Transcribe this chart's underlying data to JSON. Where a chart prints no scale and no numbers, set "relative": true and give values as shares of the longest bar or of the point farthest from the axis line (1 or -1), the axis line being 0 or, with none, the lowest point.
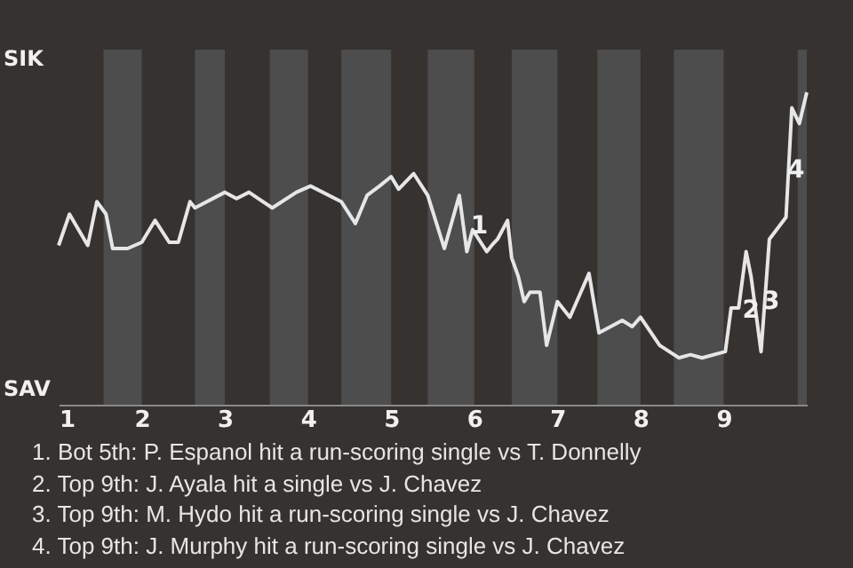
{
  "chart_data": {
    "type": "line",
    "relative": true,
    "x": [
      1.0,
      1.13,
      1.35,
      1.46,
      1.57,
      1.65,
      1.83,
      2.0,
      2.16,
      2.33,
      2.44,
      2.58,
      2.64,
      3.0,
      3.14,
      3.29,
      3.4,
      3.57,
      3.86,
      4.03,
      4.4,
      4.57,
      4.71,
      4.86,
      5.0,
      5.09,
      5.27,
      5.44,
      5.64,
      5.82,
      5.91,
      5.98,
      6.15,
      6.21,
      6.28,
      6.4,
      6.45,
      6.53,
      6.6,
      6.67,
      6.79,
      6.87,
      7.0,
      7.15,
      7.38,
      7.5,
      7.78,
      7.9,
      8.0,
      8.23,
      8.46,
      8.6,
      8.74,
      9.02,
      9.09,
      9.18,
      9.27,
      9.33,
      9.45,
      9.55,
      9.75,
      9.82,
      9.91,
      10.0
    ],
    "series": [
      {
        "color": "#e6e6e6",
        "values": [
          0.51,
          0.61,
          0.51,
          0.65,
          0.61,
          0.5,
          0.5,
          0.52,
          0.59,
          0.52,
          0.52,
          0.65,
          0.63,
          0.68,
          0.66,
          0.68,
          0.66,
          0.63,
          0.68,
          0.7,
          0.65,
          0.58,
          0.67,
          0.7,
          0.73,
          0.69,
          0.74,
          0.67,
          0.5,
          0.67,
          0.49,
          0.56,
          0.49,
          0.51,
          0.53,
          0.59,
          0.47,
          0.41,
          0.33,
          0.36,
          0.36,
          0.19,
          0.33,
          0.28,
          0.42,
          0.23,
          0.27,
          0.25,
          0.28,
          0.19,
          0.15,
          0.16,
          0.15,
          0.17,
          0.31,
          0.31,
          0.49,
          0.41,
          0.17,
          0.53,
          0.6,
          0.95,
          0.9,
          1
        ]
      }
    ],
    "xlim": [
      1,
      10
    ],
    "xticks": [
      1,
      2,
      3,
      4,
      5,
      6,
      7,
      8,
      9
    ],
    "bands": [
      {
        "axis": "x",
        "from": 1.54,
        "to": 2,
        "color": "#4d4d4d"
      },
      {
        "axis": "x",
        "from": 2.64,
        "to": 3,
        "color": "#4d4d4d"
      },
      {
        "axis": "x",
        "from": 3.54,
        "to": 4,
        "color": "#4d4d4d"
      },
      {
        "axis": "x",
        "from": 4.4,
        "to": 5,
        "color": "#4d4d4d"
      },
      {
        "axis": "x",
        "from": 5.44,
        "to": 6,
        "color": "#4d4d4d"
      },
      {
        "axis": "x",
        "from": 6.45,
        "to": 7,
        "color": "#4d4d4d"
      },
      {
        "axis": "x",
        "from": 7.48,
        "to": 8,
        "color": "#4d4d4d"
      },
      {
        "axis": "x",
        "from": 8.4,
        "to": 9,
        "color": "#4d4d4d"
      },
      {
        "axis": "x",
        "from": 9.89,
        "to": 10,
        "color": "#4d4d4d"
      }
    ],
    "annotations": [
      "SIK",
      "SAV",
      {
        "text": "1",
        "x": 6.06,
        "y": 0.57
      },
      {
        "text": "2",
        "x": 9.33,
        "y": 0.3
      },
      {
        "text": "3",
        "x": 9.57,
        "y": 0.33
      },
      {
        "text": "4",
        "x": 9.87,
        "y": 0.75
      },
      "1. Bot 5th: P. Espanol hit a run-scoring single vs T. Donnelly",
      "2. Top 9th: J. Ayala hit a single vs J. Chavez",
      "3. Top 9th: M. Hydo hit a run-scoring single vs J. Chavez",
      "4. Top 9th: J. Murphy hit a run-scoring single vs J. Chavez"
    ]
  }
}
